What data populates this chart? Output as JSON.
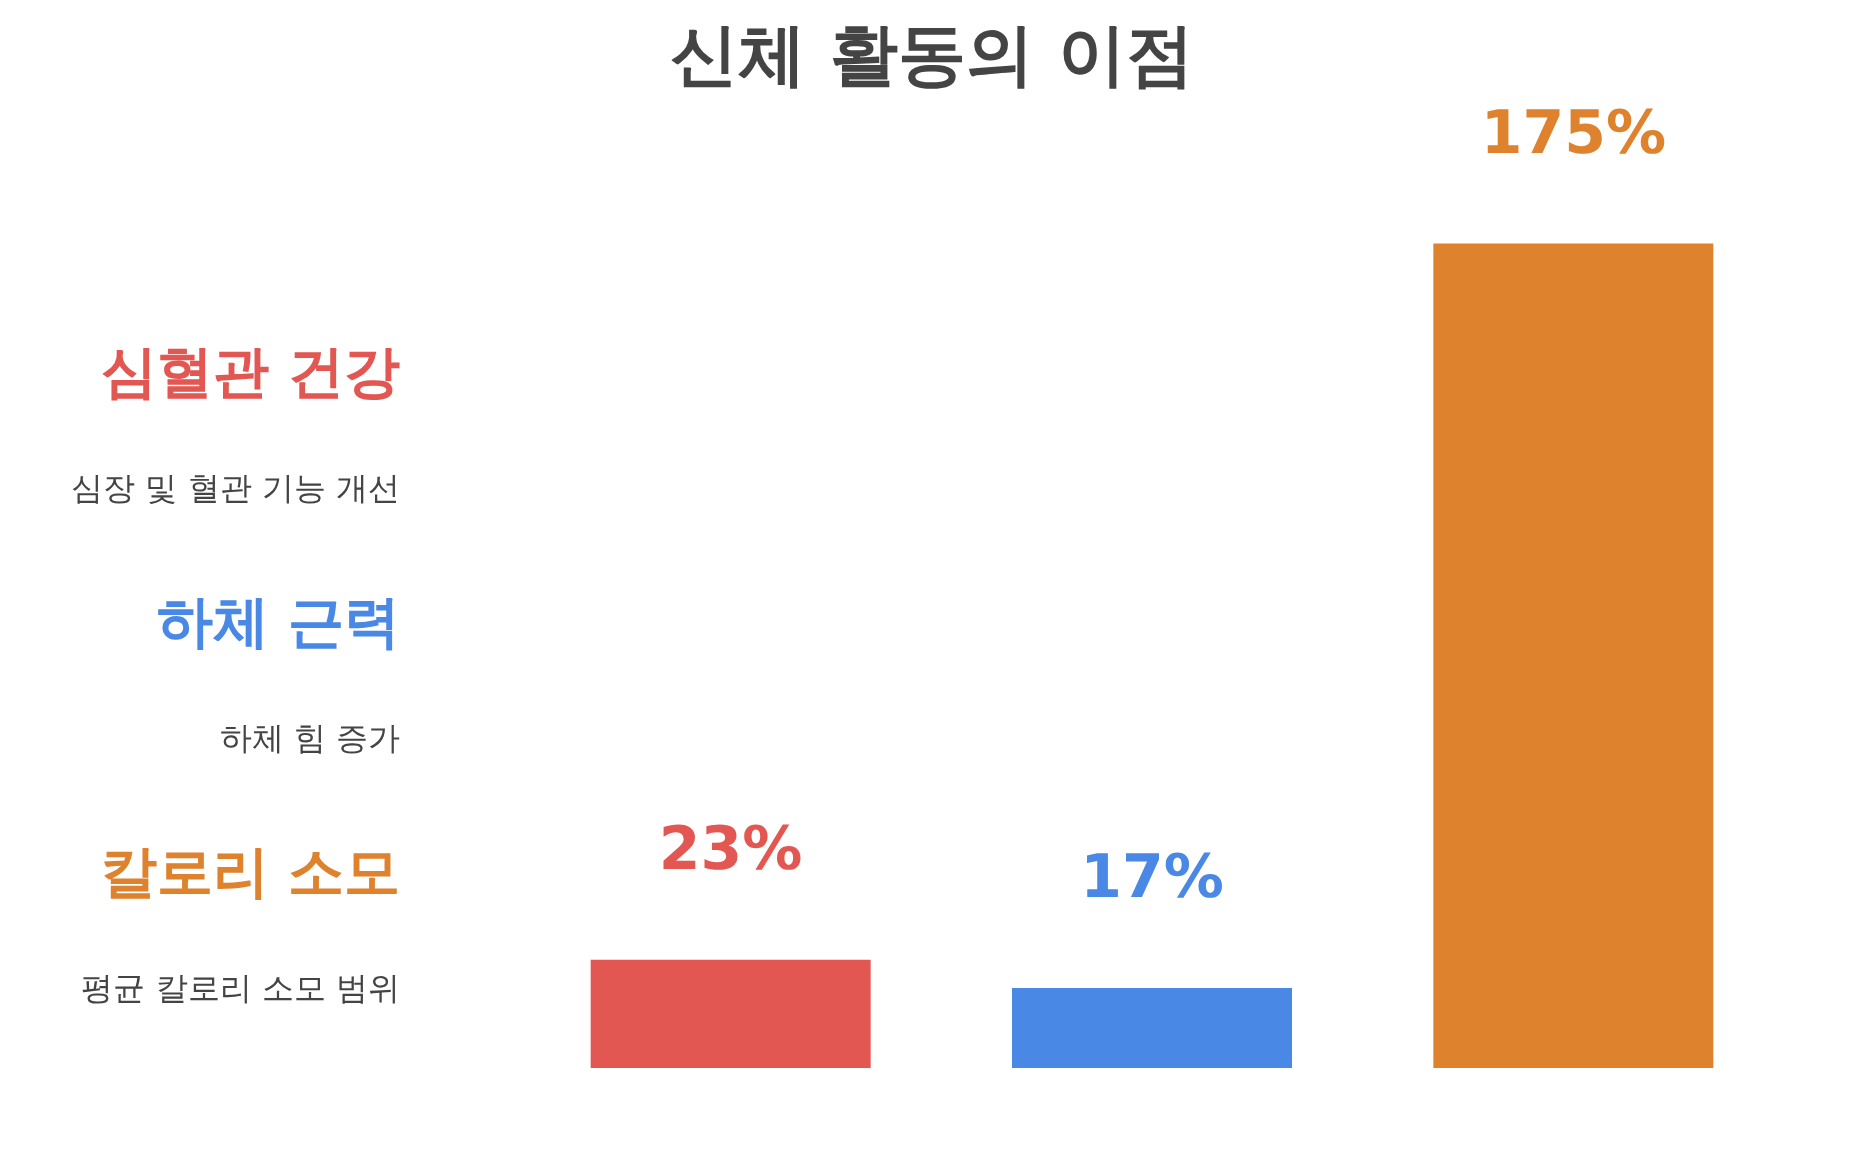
{
  "chart_data": {
    "type": "bar",
    "title": "신체 활동의 이점",
    "categories": [
      null,
      null,
      null
    ],
    "stacked": true,
    "legend": "left",
    "series": [
      {
        "name": "심혈관 건강",
        "color": "#e35752",
        "values": [
          23,
          null,
          null
        ],
        "value_labels": [
          "23%",
          null,
          null
        ]
      },
      {
        "name": "하체 근력",
        "color": "#4a88e5",
        "values": [
          null,
          17,
          null
        ],
        "value_labels": [
          null,
          "17%",
          null
        ]
      },
      {
        "name": "칼로리 소모",
        "color": "#de822e",
        "values": [
          null,
          null,
          175
        ],
        "value_labels": [
          null,
          null,
          "175%"
        ]
      }
    ],
    "annotations": [
      "심장 및 혈관 기능 개선",
      "하체 힘 증가",
      "평균 칼로리 소모 범위"
    ]
  }
}
